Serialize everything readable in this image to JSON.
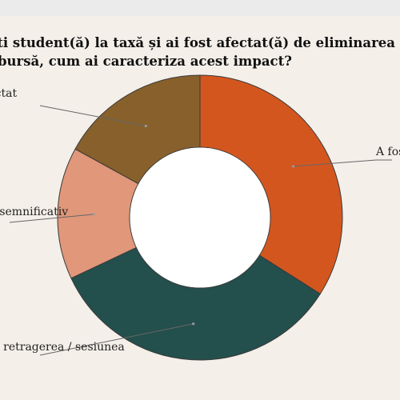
{
  "chart_data": {
    "type": "pie",
    "title_lines": [
      "Dacă ești student(ă) la taxă și ai fost afectat(ă) de eliminarea posibilității de a primi",
      "bursă, cum ai caracteriza acest impact?"
    ],
    "slices": [
      {
        "label": "A fost foarte grav",
        "value": 34.0,
        "color": "#d4561f"
      },
      {
        "label": "Am luat în calcul retragerea / sesiunea",
        "value": 34.0,
        "color": "#234f4c"
      },
      {
        "label": "Nu a avut un impact semnificativ",
        "value": 15.0,
        "color": "#e0977a"
      },
      {
        "label": "M-a afectat",
        "value": 17.0,
        "color": "#87602b"
      }
    ],
    "donut": true,
    "legend": "none"
  }
}
